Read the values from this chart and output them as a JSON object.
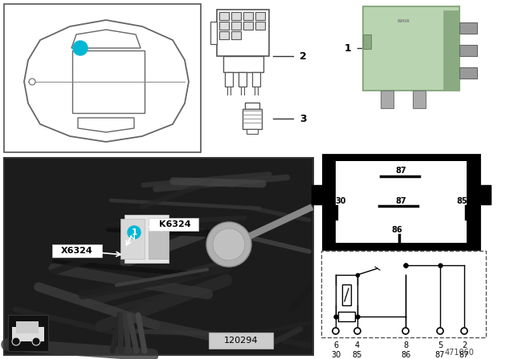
{
  "bg_color": "#ffffff",
  "diagram_id": "471060",
  "photo_id": "120294",
  "relay_color": "#b8d4b0",
  "relay_dark": "#8aaa82",
  "pin_labels_top": [
    "6",
    "4",
    "8",
    "5",
    "2"
  ],
  "pin_labels_bot": [
    "30",
    "85",
    "86",
    "87",
    "87"
  ],
  "black_box_labels": {
    "top87": "87",
    "mid30": "30",
    "mid87": "87",
    "mid85": "85",
    "bot86": "86"
  },
  "car_circle_color": "#00b8d4",
  "label_line_color": "#333333",
  "connector_label2": "2",
  "connector_label3": "3",
  "relay_label1": "1"
}
